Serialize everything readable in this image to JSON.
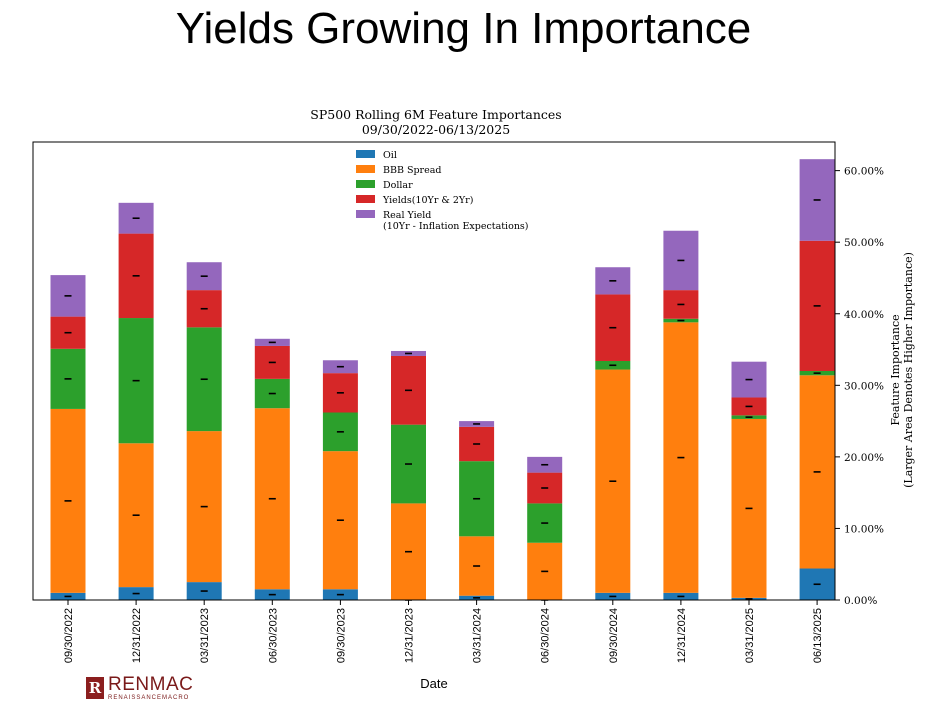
{
  "slide_title": "Yields Growing In Importance",
  "logo": {
    "name": "RENMAC",
    "sub": "RENAISSANCEMACRO"
  },
  "chart_data": {
    "type": "bar",
    "stacked": true,
    "title": "SP500 Rolling 6M Feature Importances",
    "subtitle": "09/30/2022-06/13/2025",
    "xlabel": "Date",
    "ylabel": "Feature Importance",
    "ylabel2": "(Larger Area Denotes Higher Importance)",
    "y_axis_side": "right",
    "ylim": [
      0,
      0.64
    ],
    "yticks": [
      0,
      0.1,
      0.2,
      0.3,
      0.4,
      0.5,
      0.6
    ],
    "ytick_labels": [
      "0.00%",
      "10.00%",
      "20.00%",
      "30.00%",
      "40.00%",
      "50.00%",
      "60.00%"
    ],
    "legend_position": "top-center",
    "categories": [
      "09/30/2022",
      "12/31/2022",
      "03/31/2023",
      "06/30/2023",
      "09/30/2023",
      "12/31/2023",
      "03/31/2024",
      "06/30/2024",
      "09/30/2024",
      "12/31/2024",
      "03/31/2025",
      "06/13/2025"
    ],
    "series": [
      {
        "name": "Oil",
        "color": "#1f77b4",
        "values": [
          0.01,
          0.018,
          0.025,
          0.015,
          0.015,
          0.0,
          0.006,
          0.0,
          0.01,
          0.01,
          0.003,
          0.044
        ]
      },
      {
        "name": "BBB Spread",
        "color": "#ff7f0e",
        "values": [
          0.257,
          0.201,
          0.211,
          0.253,
          0.193,
          0.135,
          0.083,
          0.08,
          0.312,
          0.378,
          0.25,
          0.27
        ]
      },
      {
        "name": "Dollar",
        "color": "#2ca02c",
        "values": [
          0.084,
          0.175,
          0.145,
          0.041,
          0.054,
          0.11,
          0.105,
          0.055,
          0.012,
          0.005,
          0.005,
          0.006
        ]
      },
      {
        "name": "Yields(10Yr & 2Yr)",
        "color": "#d62728",
        "values": [
          0.045,
          0.118,
          0.052,
          0.046,
          0.055,
          0.096,
          0.048,
          0.043,
          0.093,
          0.04,
          0.025,
          0.182
        ]
      },
      {
        "name": "Real Yield\n(10Yr - Inflation Expectations)",
        "color": "#9467bd",
        "values": [
          0.058,
          0.043,
          0.039,
          0.01,
          0.018,
          0.007,
          0.008,
          0.022,
          0.038,
          0.083,
          0.05,
          0.114
        ]
      }
    ]
  }
}
